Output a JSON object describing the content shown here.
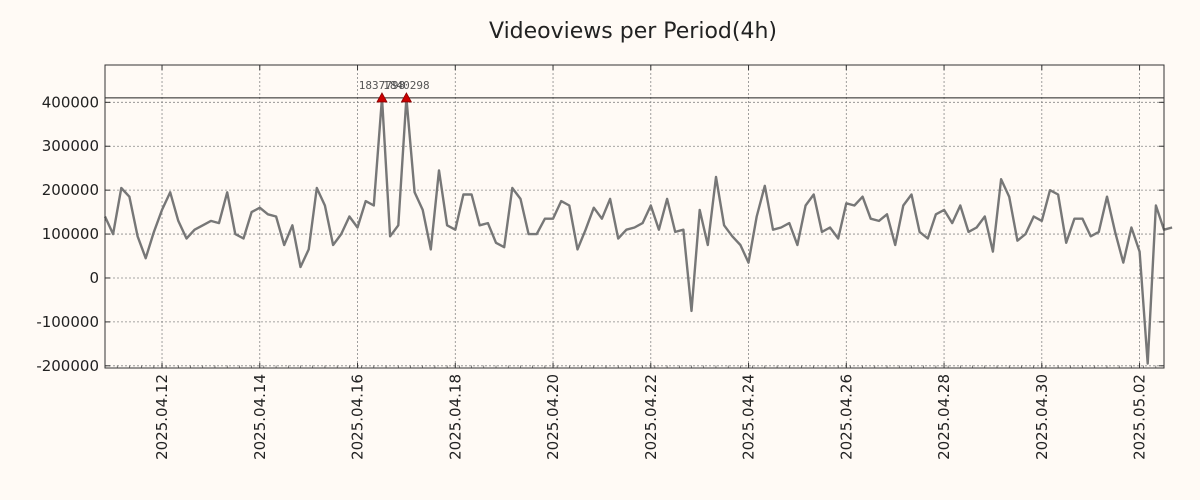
{
  "chart_data": {
    "type": "line",
    "title": "Videoviews per Period(4h)",
    "xlabel": "",
    "ylabel": "",
    "x_start": "2025.04.10 20:00",
    "x_step_hours": 4,
    "xlim": [
      "2025.04.10 20:00",
      "2025.05.02 12:00"
    ],
    "ylim": [
      -205000,
      485000
    ],
    "y_ticks": [
      -200000,
      -100000,
      0,
      100000,
      200000,
      300000,
      400000
    ],
    "y_tick_labels": [
      "-200000",
      "-100000",
      "0",
      "100000",
      "200000",
      "300000",
      "400000"
    ],
    "x_ticks": [
      "2025.04.12",
      "2025.04.14",
      "2025.04.16",
      "2025.04.18",
      "2025.04.20",
      "2025.04.22",
      "2025.04.24",
      "2025.04.26",
      "2025.04.28",
      "2025.04.30",
      "2025.05.02"
    ],
    "reference_line": 410000,
    "grid": true,
    "line_color": "#777777",
    "marker_color": "#cc0000",
    "series": [
      {
        "values": [
          140000,
          100000,
          205000,
          185000,
          95000,
          45000,
          105000,
          155000,
          195000,
          130000,
          90000,
          110000,
          120000,
          130000,
          125000,
          195000,
          100000,
          90000,
          150000,
          160000,
          145000,
          140000,
          75000,
          120000,
          25000,
          65000,
          205000,
          165000,
          75000,
          100000,
          140000,
          115000,
          175000,
          165000,
          410000,
          95000,
          120000,
          410000,
          195000,
          155000,
          65000,
          245000,
          120000,
          110000,
          190000,
          190000,
          120000,
          125000,
          80000,
          70000,
          205000,
          180000,
          100000,
          100000,
          135000,
          135000,
          175000,
          165000,
          65000,
          110000,
          160000,
          135000,
          180000,
          90000,
          110000,
          115000,
          125000,
          165000,
          110000,
          180000,
          105000,
          110000,
          -75000,
          155000,
          75000,
          230000,
          120000,
          95000,
          75000,
          35000,
          140000,
          210000,
          110000,
          115000,
          125000,
          75000,
          165000,
          190000,
          105000,
          115000,
          90000,
          170000,
          165000,
          185000,
          135000,
          130000,
          145000,
          75000,
          165000,
          190000,
          105000,
          90000,
          145000,
          155000,
          125000,
          165000,
          105000,
          115000,
          140000,
          60000,
          225000,
          185000,
          85000,
          100000,
          140000,
          130000,
          200000,
          190000,
          80000,
          135000,
          135000,
          95000,
          105000,
          185000,
          105000,
          35000,
          115000,
          60000,
          -195000,
          165000,
          110000,
          115000
        ]
      }
    ],
    "annotations": [
      {
        "index": 34,
        "label": "1837798"
      },
      {
        "index": 37,
        "label": "1840298"
      }
    ]
  }
}
